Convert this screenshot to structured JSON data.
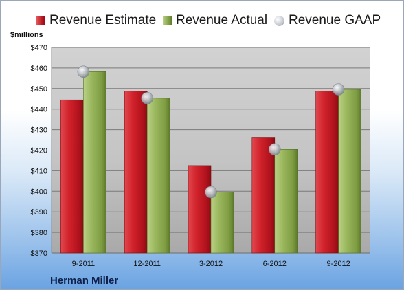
{
  "chart_data": {
    "type": "bar",
    "ylabel": "$millions",
    "ylim": [
      370,
      470
    ],
    "yticks": [
      370,
      380,
      390,
      400,
      410,
      420,
      430,
      440,
      450,
      460,
      470
    ],
    "ytick_labels": [
      "$370",
      "$380",
      "$390",
      "$400",
      "$410",
      "$420",
      "$430",
      "$440",
      "$450",
      "$460",
      "$470"
    ],
    "categories": [
      "9-2011",
      "12-2011",
      "3-2012",
      "6-2012",
      "9-2012"
    ],
    "series": [
      {
        "name": "Revenue Estimate",
        "type": "bar",
        "color": "#c8202a",
        "values": [
          444.5,
          448.8,
          412.5,
          426.0,
          448.8
        ]
      },
      {
        "name": "Revenue Actual",
        "type": "bar",
        "color": "#8fae54",
        "values": [
          458.2,
          445.3,
          399.6,
          420.4,
          449.6
        ]
      },
      {
        "name": "Revenue GAAP",
        "type": "scatter",
        "color": "#b9bec6",
        "values": [
          458.2,
          445.3,
          399.6,
          420.4,
          449.6
        ]
      }
    ],
    "grid": true,
    "legend_position": "top"
  },
  "brand": {
    "label": "Herman Miller"
  }
}
